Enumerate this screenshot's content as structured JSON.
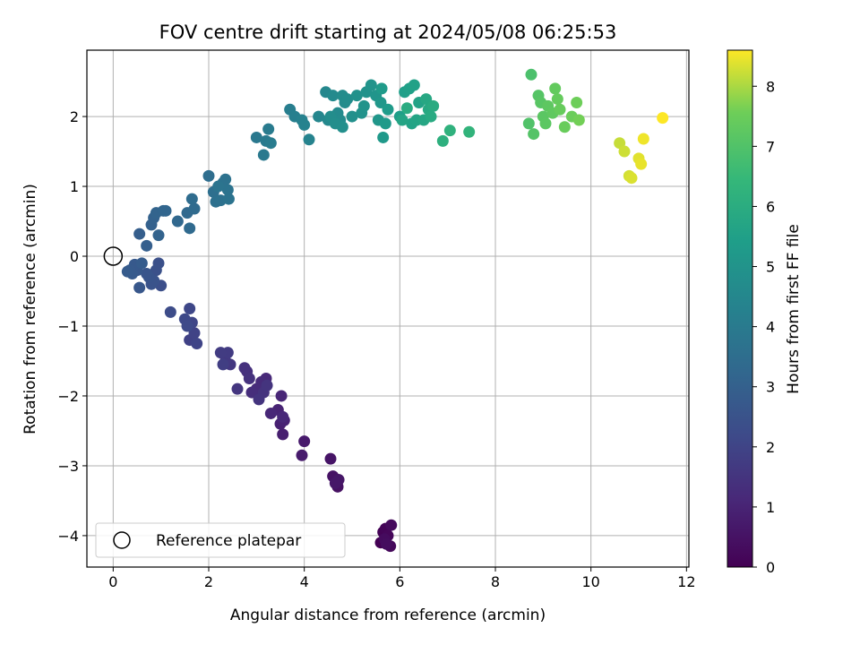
{
  "chart_data": {
    "type": "scatter",
    "title": "FOV centre drift starting at 2024/05/08 06:25:53",
    "xlabel": "Angular distance from reference (arcmin)",
    "ylabel": "Rotation from reference (arcmin)",
    "xlim": [
      -0.55,
      12.05
    ],
    "ylim": [
      -4.45,
      2.95
    ],
    "xticks": [
      0,
      2,
      4,
      6,
      8,
      10,
      12
    ],
    "yticks": [
      -4,
      -3,
      -2,
      -1,
      0,
      1,
      2
    ],
    "grid": true,
    "colormap": "viridis",
    "colorbar": {
      "label": "Hours from first FF file",
      "range": [
        0,
        8.6
      ],
      "ticks": [
        0,
        1,
        2,
        3,
        4,
        5,
        6,
        7,
        8
      ]
    },
    "legend": {
      "placement": "lower-left",
      "entries": [
        "Reference platepar"
      ]
    },
    "reference_point": {
      "x": 0,
      "y": 0
    },
    "series": [
      {
        "points": [
          [
            5.6,
            -4.1,
            0.0
          ],
          [
            5.65,
            -3.95,
            0.05
          ],
          [
            5.7,
            -3.9,
            0.1
          ],
          [
            5.75,
            -4.0,
            0.15
          ],
          [
            5.8,
            -4.15,
            0.2
          ],
          [
            5.82,
            -3.85,
            0.25
          ],
          [
            5.68,
            -4.05,
            0.3
          ],
          [
            5.72,
            -4.12,
            0.35
          ],
          [
            4.7,
            -3.3,
            0.45
          ],
          [
            4.6,
            -3.15,
            0.5
          ],
          [
            4.55,
            -2.9,
            0.55
          ],
          [
            4.72,
            -3.2,
            0.6
          ],
          [
            4.65,
            -3.25,
            0.62
          ],
          [
            4.0,
            -2.65,
            0.7
          ],
          [
            3.95,
            -2.85,
            0.75
          ],
          [
            3.55,
            -2.55,
            0.85
          ],
          [
            3.5,
            -2.4,
            0.9
          ],
          [
            3.58,
            -2.35,
            0.95
          ],
          [
            3.45,
            -2.2,
            1.0
          ],
          [
            3.52,
            -2.0,
            1.05
          ],
          [
            3.3,
            -2.25,
            1.1
          ],
          [
            3.55,
            -2.3,
            1.12
          ],
          [
            3.2,
            -1.75,
            1.15
          ],
          [
            3.1,
            -1.8,
            1.2
          ],
          [
            3.0,
            -1.9,
            1.25
          ],
          [
            2.9,
            -1.95,
            1.3
          ],
          [
            2.8,
            -1.65,
            1.35
          ],
          [
            2.75,
            -1.6,
            1.4
          ],
          [
            2.85,
            -1.75,
            1.42
          ],
          [
            3.15,
            -1.95,
            1.45
          ],
          [
            3.05,
            -2.05,
            1.48
          ],
          [
            3.22,
            -1.85,
            1.5
          ],
          [
            2.6,
            -1.9,
            1.55
          ],
          [
            2.45,
            -1.55,
            1.6
          ],
          [
            2.35,
            -1.5,
            1.65
          ],
          [
            2.4,
            -1.38,
            1.7
          ],
          [
            2.25,
            -1.38,
            1.75
          ],
          [
            2.3,
            -1.55,
            1.8
          ],
          [
            1.6,
            -1.2,
            1.9
          ],
          [
            1.7,
            -1.1,
            1.95
          ],
          [
            1.75,
            -1.25,
            2.0
          ],
          [
            1.65,
            -0.95,
            2.05
          ],
          [
            1.6,
            -0.75,
            2.1
          ],
          [
            1.5,
            -0.9,
            2.15
          ],
          [
            1.55,
            -1.0,
            2.18
          ],
          [
            1.2,
            -0.8,
            2.25
          ],
          [
            1.0,
            -0.42,
            2.35
          ],
          [
            0.95,
            -0.1,
            2.4
          ],
          [
            0.9,
            -0.2,
            2.45
          ],
          [
            0.85,
            -0.35,
            2.5
          ],
          [
            0.8,
            -0.4,
            2.52
          ],
          [
            0.75,
            -0.3,
            2.55
          ],
          [
            0.7,
            -0.25,
            2.6
          ],
          [
            0.55,
            -0.45,
            2.65
          ],
          [
            0.5,
            -0.2,
            2.7
          ],
          [
            0.45,
            -0.12,
            2.72
          ],
          [
            0.4,
            -0.25,
            2.75
          ],
          [
            0.35,
            -0.2,
            2.78
          ],
          [
            0.3,
            -0.22,
            2.8
          ],
          [
            0.6,
            -0.1,
            2.82
          ],
          [
            0.55,
            0.32,
            2.9
          ],
          [
            0.7,
            0.15,
            2.95
          ],
          [
            0.8,
            0.45,
            3.0
          ],
          [
            0.85,
            0.55,
            3.05
          ],
          [
            0.95,
            0.3,
            3.1
          ],
          [
            0.9,
            0.62,
            3.12
          ],
          [
            1.05,
            0.65,
            3.15
          ],
          [
            1.1,
            0.65,
            3.2
          ],
          [
            1.35,
            0.5,
            3.25
          ],
          [
            1.55,
            0.62,
            3.3
          ],
          [
            1.6,
            0.4,
            3.35
          ],
          [
            1.7,
            0.68,
            3.4
          ],
          [
            1.65,
            0.82,
            3.42
          ],
          [
            2.0,
            1.15,
            3.5
          ],
          [
            2.1,
            0.92,
            3.55
          ],
          [
            2.15,
            0.78,
            3.6
          ],
          [
            2.25,
            0.8,
            3.62
          ],
          [
            2.3,
            1.05,
            3.65
          ],
          [
            2.35,
            1.1,
            3.68
          ],
          [
            2.4,
            0.95,
            3.7
          ],
          [
            2.42,
            0.82,
            3.72
          ],
          [
            2.2,
            1.0,
            3.75
          ],
          [
            3.0,
            1.7,
            3.9
          ],
          [
            3.15,
            1.45,
            3.95
          ],
          [
            3.2,
            1.65,
            4.0
          ],
          [
            3.25,
            1.82,
            4.02
          ],
          [
            3.3,
            1.62,
            4.05
          ],
          [
            3.7,
            2.1,
            4.15
          ],
          [
            3.8,
            2.0,
            4.2
          ],
          [
            3.95,
            1.95,
            4.25
          ],
          [
            4.0,
            1.88,
            4.3
          ],
          [
            4.1,
            1.67,
            4.35
          ],
          [
            4.3,
            2.0,
            4.45
          ],
          [
            4.45,
            2.35,
            4.5
          ],
          [
            4.5,
            1.95,
            4.55
          ],
          [
            4.6,
            2.3,
            4.6
          ],
          [
            4.7,
            2.05,
            4.62
          ],
          [
            4.75,
            1.95,
            4.65
          ],
          [
            4.8,
            2.3,
            4.68
          ],
          [
            4.85,
            2.2,
            4.7
          ],
          [
            4.9,
            2.25,
            4.72
          ],
          [
            4.55,
            2.0,
            4.75
          ],
          [
            4.65,
            1.9,
            4.78
          ],
          [
            4.8,
            1.85,
            4.8
          ],
          [
            5.0,
            2.0,
            4.85
          ],
          [
            5.1,
            2.3,
            4.9
          ],
          [
            5.2,
            2.05,
            4.92
          ],
          [
            5.3,
            2.35,
            4.95
          ],
          [
            5.25,
            2.15,
            4.98
          ],
          [
            5.4,
            2.45,
            5.0
          ],
          [
            5.5,
            2.3,
            5.05
          ],
          [
            5.55,
            1.95,
            5.1
          ],
          [
            5.6,
            2.2,
            5.15
          ],
          [
            5.65,
            1.7,
            5.2
          ],
          [
            5.7,
            1.9,
            5.25
          ],
          [
            5.75,
            2.1,
            5.28
          ],
          [
            5.62,
            2.4,
            5.3
          ],
          [
            6.0,
            2.0,
            5.4
          ],
          [
            6.1,
            2.35,
            5.45
          ],
          [
            6.2,
            2.4,
            5.5
          ],
          [
            6.3,
            2.45,
            5.55
          ],
          [
            6.4,
            2.2,
            5.6
          ],
          [
            6.25,
            1.9,
            5.62
          ],
          [
            6.35,
            1.95,
            5.65
          ],
          [
            6.05,
            1.95,
            5.68
          ],
          [
            6.5,
            1.95,
            5.75
          ],
          [
            6.55,
            2.25,
            5.8
          ],
          [
            6.6,
            2.1,
            5.85
          ],
          [
            6.65,
            2.0,
            5.9
          ],
          [
            6.7,
            2.15,
            5.92
          ],
          [
            6.15,
            2.12,
            5.95
          ],
          [
            6.9,
            1.65,
            6.1
          ],
          [
            7.05,
            1.8,
            6.2
          ],
          [
            7.45,
            1.78,
            6.3
          ],
          [
            8.75,
            2.6,
            6.9
          ],
          [
            8.7,
            1.9,
            7.0
          ],
          [
            8.8,
            1.75,
            7.05
          ],
          [
            8.9,
            2.3,
            7.1
          ],
          [
            8.95,
            2.2,
            7.15
          ],
          [
            9.0,
            2.0,
            7.2
          ],
          [
            9.05,
            1.9,
            7.22
          ],
          [
            9.1,
            2.15,
            7.25
          ],
          [
            9.2,
            2.05,
            7.3
          ],
          [
            9.25,
            2.4,
            7.35
          ],
          [
            9.3,
            2.25,
            7.4
          ],
          [
            9.35,
            2.1,
            7.42
          ],
          [
            9.45,
            1.85,
            7.45
          ],
          [
            9.6,
            2.0,
            7.5
          ],
          [
            9.7,
            2.2,
            7.55
          ],
          [
            9.75,
            1.95,
            7.6
          ],
          [
            10.6,
            1.62,
            8.2
          ],
          [
            10.7,
            1.5,
            8.25
          ],
          [
            10.8,
            1.15,
            8.3
          ],
          [
            10.85,
            1.12,
            8.35
          ],
          [
            11.0,
            1.4,
            8.4
          ],
          [
            11.05,
            1.32,
            8.45
          ],
          [
            11.1,
            1.68,
            8.5
          ],
          [
            11.5,
            1.98,
            8.6
          ]
        ]
      }
    ]
  }
}
